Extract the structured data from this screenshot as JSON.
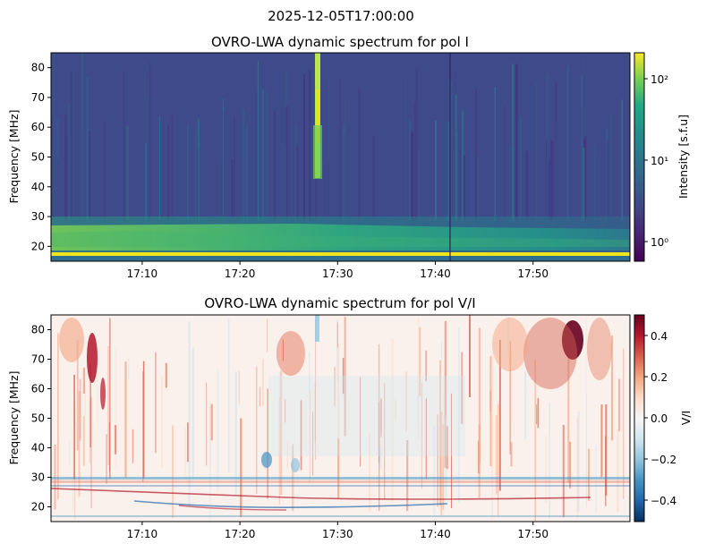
{
  "suptitle": "2025-12-05T17:00:00",
  "chart_data": [
    {
      "type": "heatmap",
      "title": "OVRO-LWA dynamic spectrum for pol I",
      "ylabel": "Frequency [MHz]",
      "xlabel": "",
      "x_range": [
        "17:00:40",
        "17:59:55"
      ],
      "x_ticks": [
        "17:10",
        "17:20",
        "17:30",
        "17:40",
        "17:50"
      ],
      "ylim": [
        15,
        85
      ],
      "y_ticks": [
        "20",
        "30",
        "40",
        "50",
        "60",
        "70",
        "80"
      ],
      "colormap": "viridis",
      "colorbar": {
        "label": "Intensity [s.f.u]",
        "scale": "log",
        "range": [
          0.6,
          200
        ],
        "ticks": [
          "10⁰",
          "10¹",
          "10²"
        ]
      },
      "features": [
        {
          "kind": "bright-band",
          "freq_range": [
            16,
            18
          ],
          "level": "saturated"
        },
        {
          "kind": "enhanced-band",
          "freq_range": [
            18,
            28
          ],
          "level": "moderate",
          "fades_after": "17:56"
        },
        {
          "kind": "vertical-burst",
          "time": "17:28",
          "freq_range": [
            27,
            85
          ],
          "level": "high"
        },
        {
          "kind": "dark-line",
          "time": "17:42",
          "freq_range": [
            15,
            85
          ]
        }
      ]
    },
    {
      "type": "heatmap",
      "title": "OVRO-LWA dynamic spectrum for pol V/I",
      "ylabel": "Frequency [MHz]",
      "xlabel": "",
      "x_range": [
        "17:00:40",
        "17:59:55"
      ],
      "x_ticks": [
        "17:10",
        "17:20",
        "17:30",
        "17:40",
        "17:50"
      ],
      "ylim": [
        15,
        85
      ],
      "y_ticks": [
        "20",
        "30",
        "40",
        "50",
        "60",
        "70",
        "80"
      ],
      "colormap": "RdBu_r",
      "colorbar": {
        "label": "V/I",
        "scale": "linear",
        "range": [
          -0.5,
          0.5
        ],
        "ticks": [
          "0.4",
          "0.2",
          "0.0",
          "−0.2",
          "−0.4"
        ]
      },
      "features": [
        {
          "kind": "positive-patch",
          "time": "17:05",
          "freq_range": [
            55,
            80
          ],
          "level": 0.45
        },
        {
          "kind": "positive-patch",
          "time": "17:24",
          "freq_range": [
            60,
            82
          ],
          "level": 0.3
        },
        {
          "kind": "positive-patch",
          "time": "17:55",
          "freq_range": [
            62,
            85
          ],
          "level": 0.5
        },
        {
          "kind": "negative-band",
          "freq_range": [
            27,
            29
          ],
          "level": -0.3
        },
        {
          "kind": "negative-patch",
          "time": "17:22",
          "freq_range": [
            33,
            38
          ],
          "level": -0.3
        }
      ]
    }
  ]
}
